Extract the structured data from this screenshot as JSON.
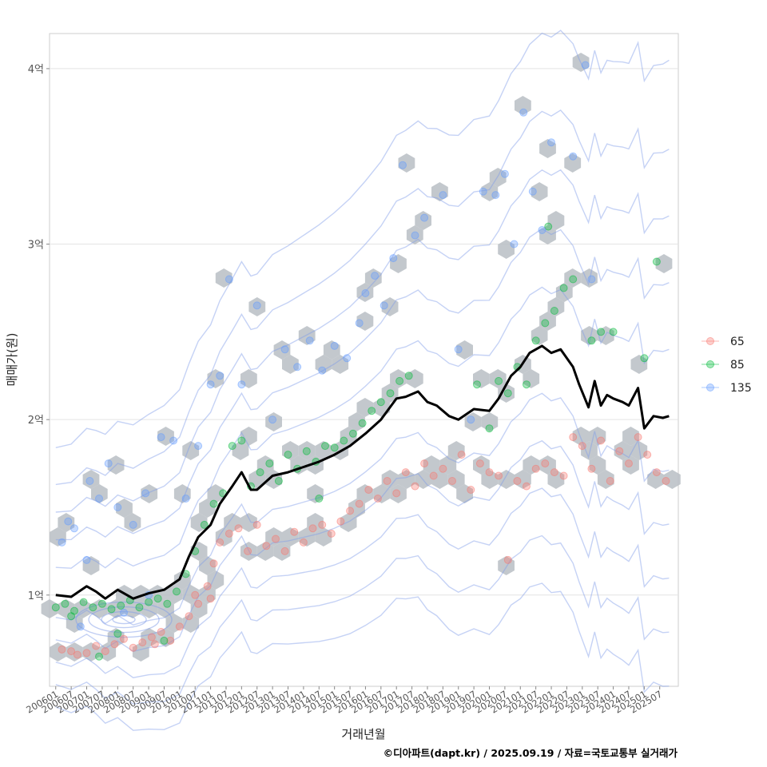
{
  "chart_data": {
    "type": "scatter",
    "title": "",
    "xlabel": "거래년월",
    "ylabel": "매매가(원)",
    "caption": "©디아파트(dapt.kr) / 2025.09.19 / 자료=국토교통부 실거래가",
    "x_tick_labels": [
      "200601",
      "200607",
      "200701",
      "200707",
      "200801",
      "200807",
      "200901",
      "200907",
      "201001",
      "201007",
      "201101",
      "201107",
      "201201",
      "201207",
      "201301",
      "201307",
      "201401",
      "201407",
      "201501",
      "201507",
      "201601",
      "201607",
      "201701",
      "201707",
      "201801",
      "201807",
      "201901",
      "201907",
      "202001",
      "202007",
      "202101",
      "202107",
      "202201",
      "202207",
      "202301",
      "202307",
      "202401",
      "202407",
      "202501",
      "202507"
    ],
    "xlim": [
      2005.8,
      2026.1
    ],
    "y_ticks": [
      {
        "value": 1.0,
        "label": "1억"
      },
      {
        "value": 2.0,
        "label": "2억"
      },
      {
        "value": 3.0,
        "label": "3억"
      },
      {
        "value": 4.0,
        "label": "4억"
      }
    ],
    "ylim": [
      0.48,
      4.2
    ],
    "legend": {
      "position": "right",
      "items": [
        {
          "label": "65",
          "color": "#F8766D"
        },
        {
          "label": "85",
          "color": "#00BA38"
        },
        {
          "label": "135",
          "color": "#619CFF"
        }
      ]
    },
    "median_line": {
      "name": "median",
      "color": "#000000",
      "x": [
        2006.0,
        2006.5,
        2007.0,
        2007.3,
        2007.6,
        2008.0,
        2008.5,
        2009.0,
        2009.5,
        2010.0,
        2010.3,
        2010.6,
        2011.0,
        2011.3,
        2011.7,
        2012.0,
        2012.3,
        2012.5,
        2013.0,
        2013.5,
        2014.0,
        2014.5,
        2015.0,
        2015.5,
        2016.0,
        2016.5,
        2017.0,
        2017.3,
        2017.7,
        2018.0,
        2018.3,
        2018.7,
        2019.0,
        2019.5,
        2020.0,
        2020.3,
        2020.7,
        2021.0,
        2021.3,
        2021.7,
        2022.0,
        2022.3,
        2022.7,
        2022.9,
        2023.2,
        2023.4,
        2023.6,
        2023.8,
        2024.0,
        2024.3,
        2024.5,
        2024.8,
        2025.0,
        2025.3,
        2025.6,
        2025.8
      ],
      "y": [
        1.0,
        0.99,
        1.05,
        1.02,
        0.98,
        1.03,
        0.98,
        1.01,
        1.03,
        1.09,
        1.22,
        1.33,
        1.4,
        1.52,
        1.62,
        1.7,
        1.6,
        1.6,
        1.68,
        1.7,
        1.73,
        1.76,
        1.8,
        1.85,
        1.92,
        2.0,
        2.12,
        2.13,
        2.16,
        2.1,
        2.08,
        2.02,
        2.0,
        2.06,
        2.05,
        2.12,
        2.25,
        2.3,
        2.38,
        2.42,
        2.38,
        2.4,
        2.3,
        2.2,
        2.07,
        2.22,
        2.08,
        2.14,
        2.12,
        2.1,
        2.08,
        2.18,
        1.95,
        2.02,
        2.01,
        2.02
      ]
    },
    "series": [
      {
        "name": "65",
        "color": "#F8766D",
        "points": [
          [
            2006.2,
            0.69
          ],
          [
            2006.5,
            0.68
          ],
          [
            2006.7,
            0.66
          ],
          [
            2007.0,
            0.67
          ],
          [
            2007.3,
            0.71
          ],
          [
            2007.6,
            0.68
          ],
          [
            2007.9,
            0.72
          ],
          [
            2008.2,
            0.75
          ],
          [
            2008.5,
            0.7
          ],
          [
            2008.8,
            0.73
          ],
          [
            2009.1,
            0.76
          ],
          [
            2009.4,
            0.79
          ],
          [
            2009.7,
            0.74
          ],
          [
            2010.0,
            0.82
          ],
          [
            2010.3,
            0.88
          ],
          [
            2010.6,
            0.95
          ],
          [
            2010.9,
            1.05
          ],
          [
            2011.1,
            1.18
          ],
          [
            2011.3,
            1.3
          ],
          [
            2011.6,
            1.35
          ],
          [
            2011.9,
            1.38
          ],
          [
            2012.2,
            1.25
          ],
          [
            2012.5,
            1.4
          ],
          [
            2012.8,
            1.28
          ],
          [
            2013.1,
            1.32
          ],
          [
            2013.4,
            1.25
          ],
          [
            2013.7,
            1.36
          ],
          [
            2014.0,
            1.3
          ],
          [
            2014.3,
            1.38
          ],
          [
            2014.6,
            1.4
          ],
          [
            2014.9,
            1.35
          ],
          [
            2015.2,
            1.42
          ],
          [
            2015.5,
            1.48
          ],
          [
            2015.8,
            1.52
          ],
          [
            2016.1,
            1.6
          ],
          [
            2016.4,
            1.55
          ],
          [
            2016.7,
            1.65
          ],
          [
            2017.0,
            1.58
          ],
          [
            2017.3,
            1.7
          ],
          [
            2017.6,
            1.62
          ],
          [
            2017.9,
            1.75
          ],
          [
            2018.2,
            1.68
          ],
          [
            2018.5,
            1.72
          ],
          [
            2018.8,
            1.65
          ],
          [
            2019.1,
            1.8
          ],
          [
            2019.4,
            1.6
          ],
          [
            2019.7,
            1.75
          ],
          [
            2020.0,
            1.7
          ],
          [
            2020.3,
            1.68
          ],
          [
            2020.6,
            1.2
          ],
          [
            2020.9,
            1.65
          ],
          [
            2021.2,
            1.62
          ],
          [
            2021.5,
            1.72
          ],
          [
            2021.8,
            1.75
          ],
          [
            2022.1,
            1.7
          ],
          [
            2022.4,
            1.68
          ],
          [
            2022.7,
            1.9
          ],
          [
            2023.0,
            1.85
          ],
          [
            2023.3,
            1.72
          ],
          [
            2023.6,
            1.88
          ],
          [
            2023.9,
            1.65
          ],
          [
            2024.2,
            1.82
          ],
          [
            2024.5,
            1.75
          ],
          [
            2024.8,
            1.9
          ],
          [
            2025.1,
            1.8
          ],
          [
            2025.4,
            1.7
          ],
          [
            2025.7,
            1.65
          ],
          [
            2010.5,
            1.0
          ],
          [
            2011.0,
            0.98
          ],
          [
            2009.2,
            0.72
          ]
        ]
      },
      {
        "name": "85",
        "color": "#00BA38",
        "points": [
          [
            2006.0,
            0.93
          ],
          [
            2006.3,
            0.95
          ],
          [
            2006.6,
            0.91
          ],
          [
            2006.9,
            0.96
          ],
          [
            2007.2,
            0.93
          ],
          [
            2007.5,
            0.95
          ],
          [
            2007.8,
            0.92
          ],
          [
            2008.1,
            0.94
          ],
          [
            2008.4,
            0.97
          ],
          [
            2008.7,
            0.93
          ],
          [
            2009.0,
            0.96
          ],
          [
            2009.3,
            0.98
          ],
          [
            2009.6,
            0.95
          ],
          [
            2009.9,
            1.02
          ],
          [
            2010.2,
            1.12
          ],
          [
            2010.5,
            1.25
          ],
          [
            2010.8,
            1.4
          ],
          [
            2011.1,
            1.52
          ],
          [
            2011.4,
            1.58
          ],
          [
            2011.7,
            1.85
          ],
          [
            2012.0,
            1.88
          ],
          [
            2012.3,
            1.62
          ],
          [
            2012.6,
            1.7
          ],
          [
            2012.9,
            1.75
          ],
          [
            2013.2,
            1.65
          ],
          [
            2013.5,
            1.8
          ],
          [
            2013.8,
            1.72
          ],
          [
            2014.1,
            1.82
          ],
          [
            2014.4,
            1.76
          ],
          [
            2014.7,
            1.85
          ],
          [
            2015.0,
            1.84
          ],
          [
            2015.3,
            1.88
          ],
          [
            2015.6,
            1.92
          ],
          [
            2015.9,
            1.98
          ],
          [
            2016.2,
            2.05
          ],
          [
            2016.5,
            2.1
          ],
          [
            2016.8,
            2.15
          ],
          [
            2017.1,
            2.22
          ],
          [
            2017.4,
            2.25
          ],
          [
            2019.6,
            2.2
          ],
          [
            2020.0,
            1.95
          ],
          [
            2020.3,
            2.22
          ],
          [
            2020.6,
            2.15
          ],
          [
            2020.9,
            2.3
          ],
          [
            2021.2,
            2.2
          ],
          [
            2021.5,
            2.45
          ],
          [
            2021.8,
            2.55
          ],
          [
            2022.1,
            2.62
          ],
          [
            2022.4,
            2.75
          ],
          [
            2022.7,
            2.8
          ],
          [
            2023.3,
            2.45
          ],
          [
            2023.6,
            2.5
          ],
          [
            2024.0,
            2.5
          ],
          [
            2025.0,
            2.35
          ],
          [
            2025.4,
            2.9
          ],
          [
            2008.0,
            0.78
          ],
          [
            2009.5,
            0.74
          ],
          [
            2014.5,
            1.55
          ],
          [
            2021.9,
            3.1
          ],
          [
            2006.5,
            0.88
          ],
          [
            2007.4,
            0.65
          ]
        ]
      },
      {
        "name": "135",
        "color": "#619CFF",
        "points": [
          [
            2006.2,
            1.3
          ],
          [
            2006.4,
            1.42
          ],
          [
            2006.6,
            1.38
          ],
          [
            2007.1,
            1.65
          ],
          [
            2007.4,
            1.55
          ],
          [
            2007.7,
            1.75
          ],
          [
            2008.0,
            1.5
          ],
          [
            2008.5,
            1.4
          ],
          [
            2008.9,
            1.58
          ],
          [
            2009.4,
            1.9
          ],
          [
            2009.8,
            1.88
          ],
          [
            2010.2,
            1.55
          ],
          [
            2010.6,
            1.85
          ],
          [
            2011.0,
            2.2
          ],
          [
            2011.3,
            2.25
          ],
          [
            2011.6,
            2.8
          ],
          [
            2012.0,
            2.2
          ],
          [
            2012.5,
            2.65
          ],
          [
            2013.0,
            2.0
          ],
          [
            2013.4,
            2.4
          ],
          [
            2013.8,
            2.3
          ],
          [
            2014.2,
            2.45
          ],
          [
            2014.6,
            2.28
          ],
          [
            2015.0,
            2.42
          ],
          [
            2015.4,
            2.35
          ],
          [
            2015.8,
            2.55
          ],
          [
            2016.0,
            2.72
          ],
          [
            2016.3,
            2.82
          ],
          [
            2016.6,
            2.65
          ],
          [
            2016.9,
            2.92
          ],
          [
            2017.2,
            3.45
          ],
          [
            2017.6,
            3.05
          ],
          [
            2017.9,
            3.15
          ],
          [
            2018.5,
            3.28
          ],
          [
            2019.0,
            2.4
          ],
          [
            2019.4,
            2.0
          ],
          [
            2019.8,
            3.3
          ],
          [
            2020.2,
            3.28
          ],
          [
            2020.5,
            3.4
          ],
          [
            2020.8,
            3.0
          ],
          [
            2021.1,
            3.75
          ],
          [
            2021.4,
            3.3
          ],
          [
            2021.7,
            3.08
          ],
          [
            2022.0,
            3.58
          ],
          [
            2022.7,
            3.5
          ],
          [
            2023.1,
            4.02
          ],
          [
            2023.3,
            2.8
          ],
          [
            2007.0,
            1.2
          ],
          [
            2008.2,
            0.9
          ],
          [
            2009.0,
            1.0
          ],
          [
            2006.8,
            0.82
          ]
        ]
      }
    ],
    "grid": true
  }
}
